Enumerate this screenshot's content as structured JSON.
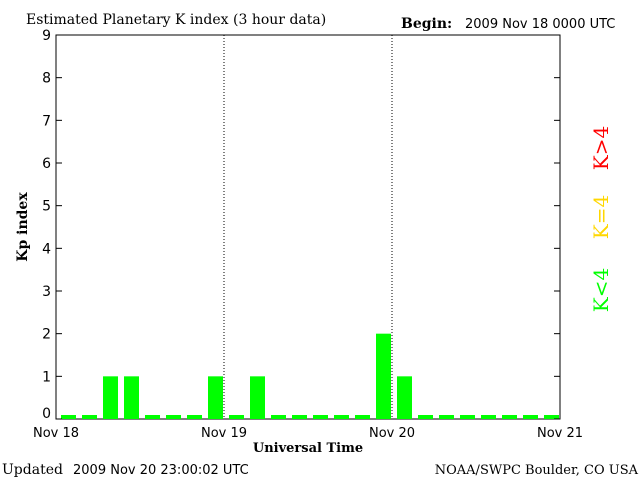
{
  "header": {
    "title": "Estimated Planetary K index (3 hour data)",
    "begin_label": "Begin:",
    "begin_value": "2009 Nov 18 0000 UTC"
  },
  "footer": {
    "updated_label": "Updated",
    "updated_value": "2009 Nov 20 23:00:02 UTC",
    "credit": "NOAA/SWPC Boulder, CO USA"
  },
  "legend": {
    "items": [
      {
        "text": "K>4",
        "color": "#ff0000"
      },
      {
        "text": "K=4",
        "color": "#ffd700"
      },
      {
        "text": "K<4",
        "color": "#00ff00"
      }
    ]
  },
  "chart_data": {
    "type": "bar",
    "title": "Estimated Planetary K index (3 hour data)",
    "xlabel": "Universal Time",
    "ylabel": "Kp index",
    "ylim": [
      0,
      9
    ],
    "yticks": [
      "0",
      "1",
      "2",
      "3",
      "4",
      "5",
      "6",
      "7",
      "8",
      "9"
    ],
    "xticks": [
      "Nov 18",
      "Nov 19",
      "Nov 20",
      "Nov 21"
    ],
    "bar_color": "#00ff00",
    "grid": "dotted vertical lines at day boundaries",
    "values": [
      0,
      0,
      1,
      1,
      0,
      0,
      0,
      1,
      0,
      1,
      0,
      0,
      0,
      0,
      0,
      2,
      1,
      0,
      0,
      0,
      0,
      0,
      0,
      0
    ]
  }
}
